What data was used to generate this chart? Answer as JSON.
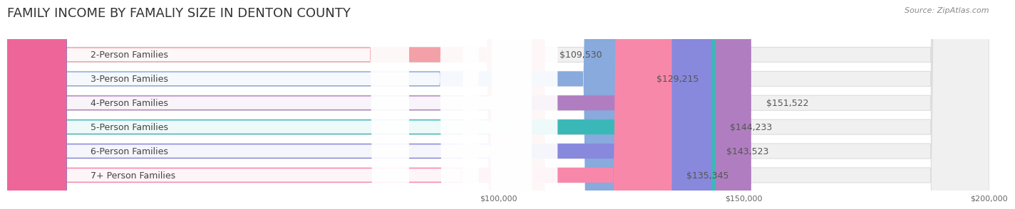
{
  "title": "FAMILY INCOME BY FAMALIY SIZE IN DENTON COUNTY",
  "source": "Source: ZipAtlas.com",
  "categories": [
    "2-Person Families",
    "3-Person Families",
    "4-Person Families",
    "5-Person Families",
    "6-Person Families",
    "7+ Person Families"
  ],
  "values": [
    109530,
    129215,
    151522,
    144233,
    143523,
    135345
  ],
  "bar_colors": [
    "#f4a0a8",
    "#88aadd",
    "#b07ec0",
    "#3ab8b8",
    "#8888dd",
    "#f888aa"
  ],
  "dot_colors": [
    "#f08090",
    "#6688cc",
    "#9955bb",
    "#229999",
    "#6666cc",
    "#ee6699"
  ],
  "value_labels": [
    "$109,530",
    "$129,215",
    "$151,522",
    "$144,233",
    "$143,523",
    "$135,345"
  ],
  "bar_bg_color": "#f0f0f0",
  "bar_border_color": "#dddddd",
  "xlim_min": 0,
  "xlim_max": 200000,
  "tick_values": [
    100000,
    150000,
    200000
  ],
  "tick_labels": [
    "$100,000",
    "$150,000",
    "$200,000"
  ],
  "title_fontsize": 13,
  "label_fontsize": 9,
  "value_fontsize": 9,
  "tick_fontsize": 8,
  "background_color": "#ffffff",
  "title_color": "#333333",
  "label_color": "#444444",
  "value_color": "#555555",
  "source_color": "#888888",
  "source_fontsize": 8
}
